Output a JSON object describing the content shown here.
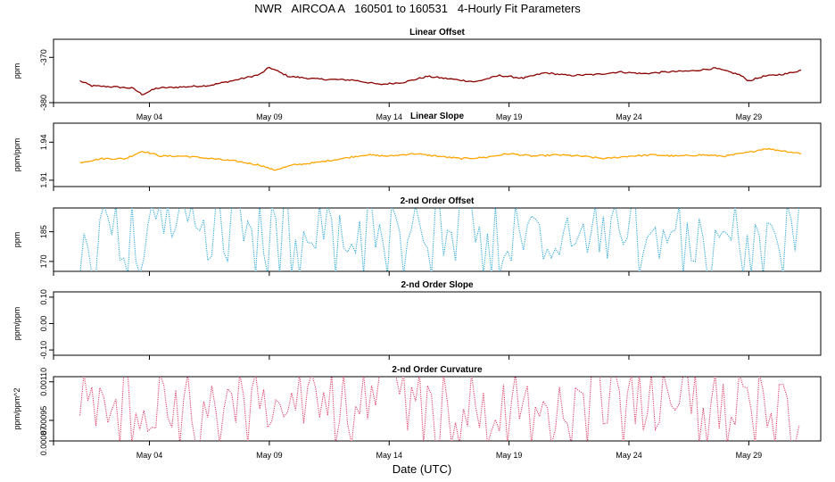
{
  "header": {
    "title": "NWR   AIRCOA A   160501 to 160531   4-Hourly Fit Parameters",
    "x_axis_title": "Date (UTC)"
  },
  "chart_data": [
    {
      "type": "line",
      "title": "Linear Offset",
      "ylabel": "ppm",
      "ylim": [
        -380,
        -366
      ],
      "yticks": [
        -370,
        -380
      ],
      "y_tick_labels": [
        "-370",
        "-380"
      ],
      "color": "#8b0000",
      "xlim": [
        0,
        32
      ],
      "xticks": [
        4,
        9,
        14,
        19,
        24,
        29
      ],
      "x_tick_labels": [
        "May 04",
        "May 09",
        "May 14",
        "May 19",
        "May 24",
        "May 29"
      ],
      "x_ticks_on_bottom": true,
      "series_keypoints": [
        [
          1.1,
          -375.2
        ],
        [
          1.6,
          -376.3
        ],
        [
          2.5,
          -376.5
        ],
        [
          3.3,
          -376.8
        ],
        [
          3.7,
          -378.2
        ],
        [
          4.3,
          -376.8
        ],
        [
          5.5,
          -376.5
        ],
        [
          6.5,
          -376.2
        ],
        [
          7.6,
          -375.0
        ],
        [
          8.6,
          -373.8
        ],
        [
          9.0,
          -372.2
        ],
        [
          9.8,
          -374.2
        ],
        [
          11.0,
          -374.8
        ],
        [
          12.5,
          -375.0
        ],
        [
          13.6,
          -376.0
        ],
        [
          14.6,
          -375.5
        ],
        [
          15.6,
          -374.2
        ],
        [
          16.6,
          -374.8
        ],
        [
          17.6,
          -375.4
        ],
        [
          18.6,
          -374.0
        ],
        [
          19.6,
          -374.6
        ],
        [
          20.5,
          -373.4
        ],
        [
          21.5,
          -374.0
        ],
        [
          22.6,
          -373.8
        ],
        [
          23.6,
          -373.2
        ],
        [
          24.6,
          -373.6
        ],
        [
          25.6,
          -373.2
        ],
        [
          26.6,
          -373.0
        ],
        [
          27.6,
          -372.4
        ],
        [
          28.6,
          -373.8
        ],
        [
          29.0,
          -375.2
        ],
        [
          29.6,
          -374.2
        ],
        [
          30.6,
          -373.6
        ],
        [
          31.2,
          -372.8
        ]
      ]
    },
    {
      "type": "line",
      "title": "Linear Slope",
      "ylabel": "ppm/ppm",
      "ylim": [
        1.905,
        1.955
      ],
      "yticks": [
        1.94,
        1.91
      ],
      "y_tick_labels": [
        "1.94",
        "1.91"
      ],
      "color": "#ffa500",
      "xlim": [
        0,
        32
      ],
      "xticks": [
        4,
        9,
        14,
        19,
        24,
        29
      ],
      "x_tick_labels": [
        "May 04",
        "May 09",
        "May 14",
        "May 19",
        "May 24",
        "May 29"
      ],
      "x_ticks_on_bottom": false,
      "series_keypoints": [
        [
          1.1,
          1.924
        ],
        [
          2.0,
          1.927
        ],
        [
          3.0,
          1.927
        ],
        [
          3.7,
          1.933
        ],
        [
          4.5,
          1.929
        ],
        [
          5.5,
          1.929
        ],
        [
          6.6,
          1.927
        ],
        [
          7.6,
          1.925
        ],
        [
          8.6,
          1.922
        ],
        [
          9.2,
          1.918
        ],
        [
          10.0,
          1.922
        ],
        [
          11.0,
          1.924
        ],
        [
          12.0,
          1.927
        ],
        [
          13.0,
          1.93
        ],
        [
          14.0,
          1.929
        ],
        [
          15.0,
          1.931
        ],
        [
          16.0,
          1.929
        ],
        [
          17.0,
          1.927
        ],
        [
          18.0,
          1.928
        ],
        [
          19.0,
          1.931
        ],
        [
          20.0,
          1.929
        ],
        [
          21.0,
          1.93
        ],
        [
          22.0,
          1.929
        ],
        [
          23.0,
          1.927
        ],
        [
          24.0,
          1.929
        ],
        [
          25.0,
          1.93
        ],
        [
          26.0,
          1.929
        ],
        [
          27.0,
          1.93
        ],
        [
          28.0,
          1.929
        ],
        [
          29.0,
          1.932
        ],
        [
          29.7,
          1.935
        ],
        [
          30.5,
          1.933
        ],
        [
          31.2,
          1.931
        ]
      ]
    },
    {
      "type": "line",
      "title": "2-nd Order Offset",
      "ylabel": "ppm",
      "ylim": [
        165,
        197
      ],
      "yticks": [
        185,
        170
      ],
      "y_tick_labels": [
        "185",
        "170"
      ],
      "color": "#2fa8d8",
      "xlim": [
        0,
        32
      ],
      "xticks": [
        4,
        9,
        14,
        19,
        24,
        29
      ],
      "x_tick_labels": [
        "May 04",
        "May 09",
        "May 14",
        "May 19",
        "May 24",
        "May 29"
      ],
      "x_ticks_on_bottom": false
    },
    {
      "type": "line",
      "title": "2-nd Order Slope",
      "ylabel": "ppm/ppm",
      "ylim": [
        -0.12,
        0.12
      ],
      "yticks": [
        0.1,
        0.0,
        -0.1
      ],
      "y_tick_labels": [
        "0.10",
        "0.00",
        "-0.10"
      ],
      "color": "#000000",
      "xlim": [
        0,
        32
      ],
      "xticks": [
        4,
        9,
        14,
        19,
        24,
        29
      ],
      "x_tick_labels": [
        "May 04",
        "May 09",
        "May 14",
        "May 19",
        "May 24",
        "May 29"
      ],
      "x_ticks_on_bottom": false,
      "x": [],
      "values": []
    },
    {
      "type": "line",
      "title": "2-nd Order Curvature",
      "ylabel": "ppm/ppm^2",
      "ylim": [
        0.00087,
        0.00112
      ],
      "yticks": [
        0.0011,
        0.00095,
        0.00087
      ],
      "y_tick_labels": [
        "0.00110",
        "0.00095",
        "0.00087"
      ],
      "color": "#e0406a",
      "xlim": [
        0,
        32
      ],
      "xticks": [
        4,
        9,
        14,
        19,
        24,
        29
      ],
      "x_tick_labels": [
        "May 04",
        "May 09",
        "May 14",
        "May 19",
        "May 24",
        "May 29"
      ],
      "x_ticks_on_bottom": true
    }
  ]
}
